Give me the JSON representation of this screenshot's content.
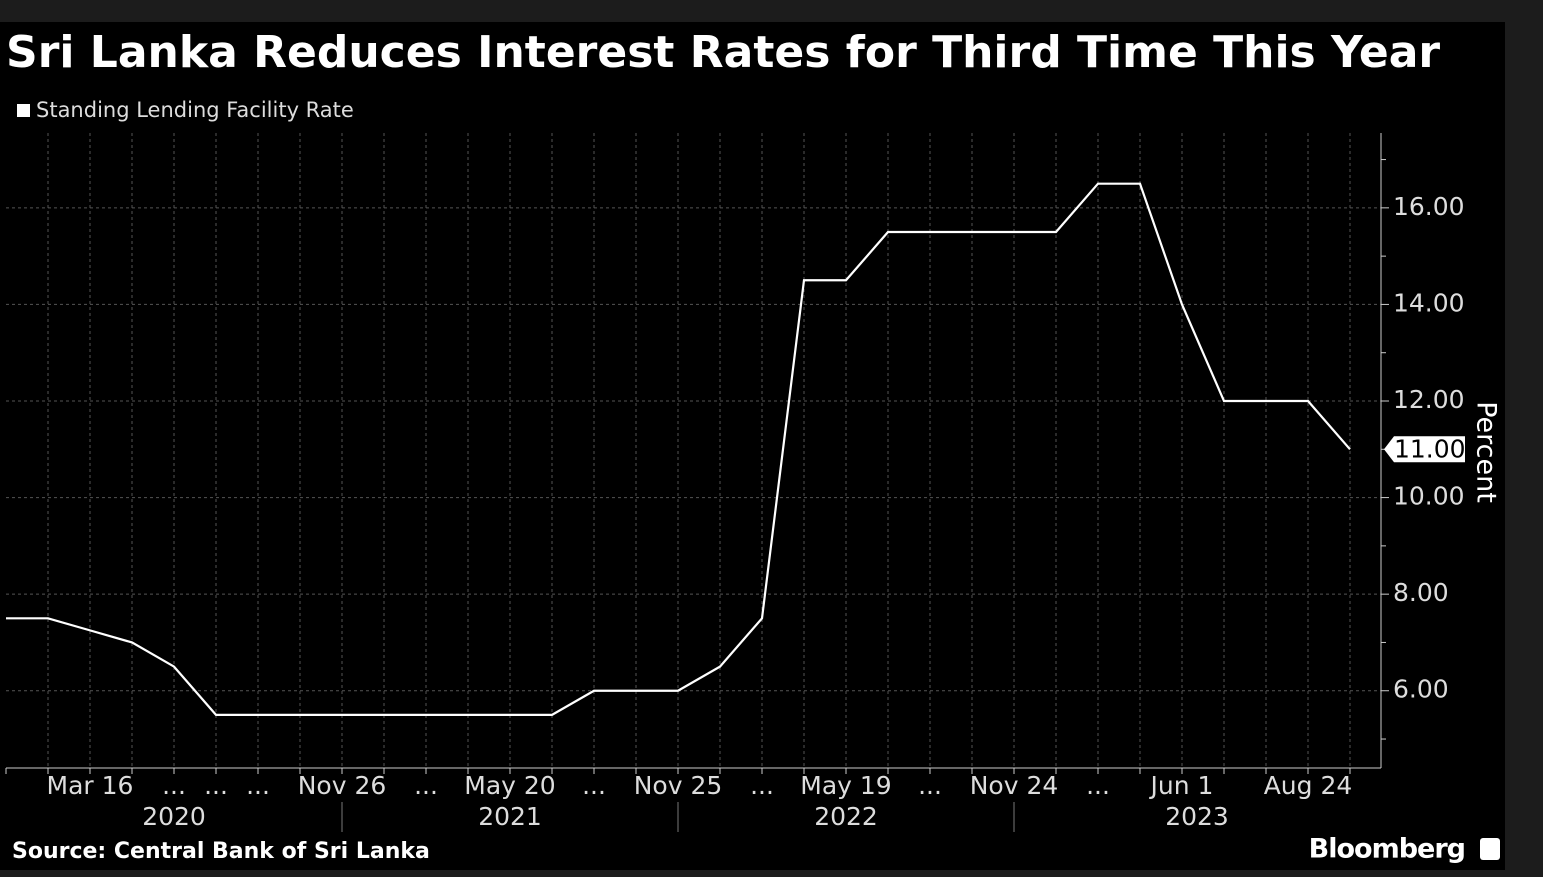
{
  "chart_data": {
    "type": "line",
    "title": "Sri Lanka Reduces Interest Rates for Third Time This Year",
    "ylabel": "Percent",
    "source": "Source: Central Bank of Sri Lanka",
    "brand": "Bloomberg",
    "categories": [
      null,
      null,
      "Mar 16",
      null,
      "...",
      "...",
      "...",
      null,
      "Nov 26",
      null,
      "...",
      null,
      "May 20",
      null,
      "...",
      null,
      "Nov 25",
      null,
      "...",
      null,
      "May 19",
      null,
      "...",
      null,
      "Nov 24",
      null,
      "...",
      null,
      "Jun 1",
      null,
      null,
      "Aug 24",
      null
    ],
    "years": [
      "2020",
      "2021",
      "2022",
      "2023"
    ],
    "series": [
      {
        "name": "Standing Lending Facility Rate",
        "color": "#ffffff",
        "values": [
          7.5,
          7.5,
          7.25,
          7.0,
          6.5,
          5.5,
          5.5,
          5.5,
          5.5,
          5.5,
          5.5,
          5.5,
          5.5,
          5.5,
          6.0,
          6.0,
          6.0,
          6.5,
          7.5,
          14.5,
          14.5,
          15.5,
          15.5,
          15.5,
          15.5,
          15.5,
          16.5,
          16.5,
          14.0,
          12.0,
          12.0,
          12.0,
          11.0
        ],
        "value_labels": [
          null,
          null,
          null,
          null,
          null,
          null,
          null,
          null,
          null,
          null,
          null,
          null,
          null,
          null,
          null,
          null,
          null,
          null,
          null,
          null,
          null,
          null,
          null,
          null,
          null,
          null,
          null,
          null,
          null,
          null,
          null,
          null,
          "11.00"
        ]
      }
    ],
    "ylim": [
      4.4,
      17.55
    ],
    "yticks": [
      {
        "value": 6,
        "label": "6.00"
      },
      {
        "value": 8,
        "label": "8.00"
      },
      {
        "value": 10,
        "label": "10.00"
      },
      {
        "value": 12,
        "label": "12.00"
      },
      {
        "value": 14,
        "label": "14.00"
      },
      {
        "value": 16,
        "label": "16.00"
      }
    ],
    "minor_yticks": [
      5,
      7,
      9,
      11,
      13,
      15,
      17
    ],
    "grid": true,
    "legend": "top-left"
  }
}
